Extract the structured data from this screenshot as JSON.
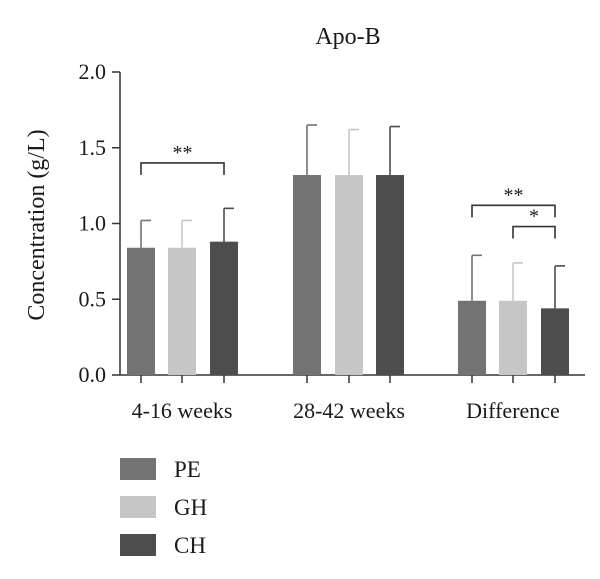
{
  "chart_data": {
    "type": "bar",
    "title": "Apo-B",
    "xlabel": "",
    "ylabel": "Concentration (g/L)",
    "ylim": [
      0,
      2.0
    ],
    "yticks": [
      "0.0",
      "0.5",
      "1.0",
      "1.5",
      "2.0"
    ],
    "categories": [
      "4-16 weeks",
      "28-42 weeks",
      "Difference"
    ],
    "series": [
      {
        "name": "PE",
        "values": [
          0.84,
          1.32,
          0.49
        ],
        "errors": [
          0.18,
          0.33,
          0.3
        ]
      },
      {
        "name": "GH",
        "values": [
          0.84,
          1.32,
          0.49
        ],
        "errors": [
          0.18,
          0.3,
          0.25
        ]
      },
      {
        "name": "CH",
        "values": [
          0.88,
          1.32,
          0.44
        ],
        "errors": [
          0.22,
          0.32,
          0.28
        ]
      }
    ],
    "colors": {
      "PE": "#737373",
      "GH": "#c6c6c6",
      "CH": "#4d4d4d"
    },
    "grid": false,
    "legend_position": "bottom-left",
    "significance": [
      {
        "category": 0,
        "from": "PE",
        "to": "CH",
        "label": "**",
        "level": 1.4
      },
      {
        "category": 2,
        "from": "PE",
        "to": "CH",
        "label": "**",
        "level": 1.12
      },
      {
        "category": 2,
        "from": "GH",
        "to": "CH",
        "label": "*",
        "level": 0.98
      }
    ]
  }
}
